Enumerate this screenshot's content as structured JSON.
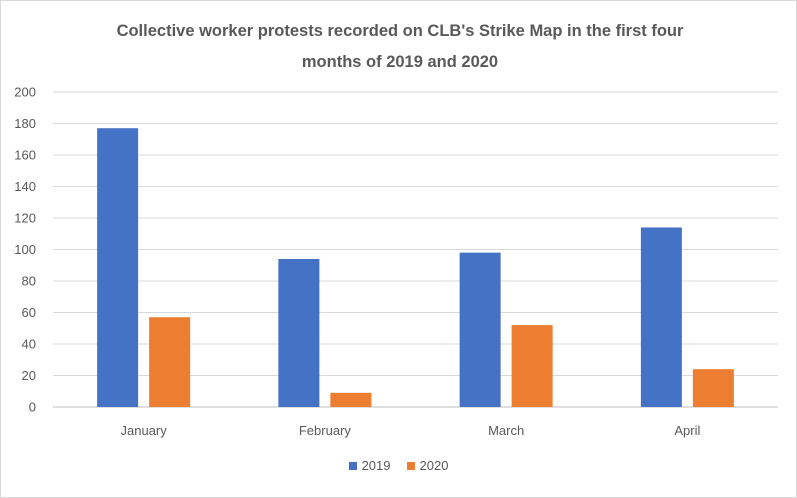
{
  "chart_data": {
    "type": "bar",
    "title_lines": [
      "Collective worker protests recorded on CLB's Strike Map in the first four",
      "months of 2019  and 2020"
    ],
    "categories": [
      "January",
      "February",
      "March",
      "April"
    ],
    "series": [
      {
        "name": "2019",
        "values": [
          177,
          94,
          98,
          114
        ],
        "color": "#4472c4"
      },
      {
        "name": "2020",
        "values": [
          57,
          9,
          52,
          24
        ],
        "color": "#ed7d31"
      }
    ],
    "ylim": [
      0,
      200
    ],
    "yticks": [
      0,
      20,
      40,
      60,
      80,
      100,
      120,
      140,
      160,
      180,
      200
    ],
    "grid": true,
    "legend_position": "bottom"
  }
}
